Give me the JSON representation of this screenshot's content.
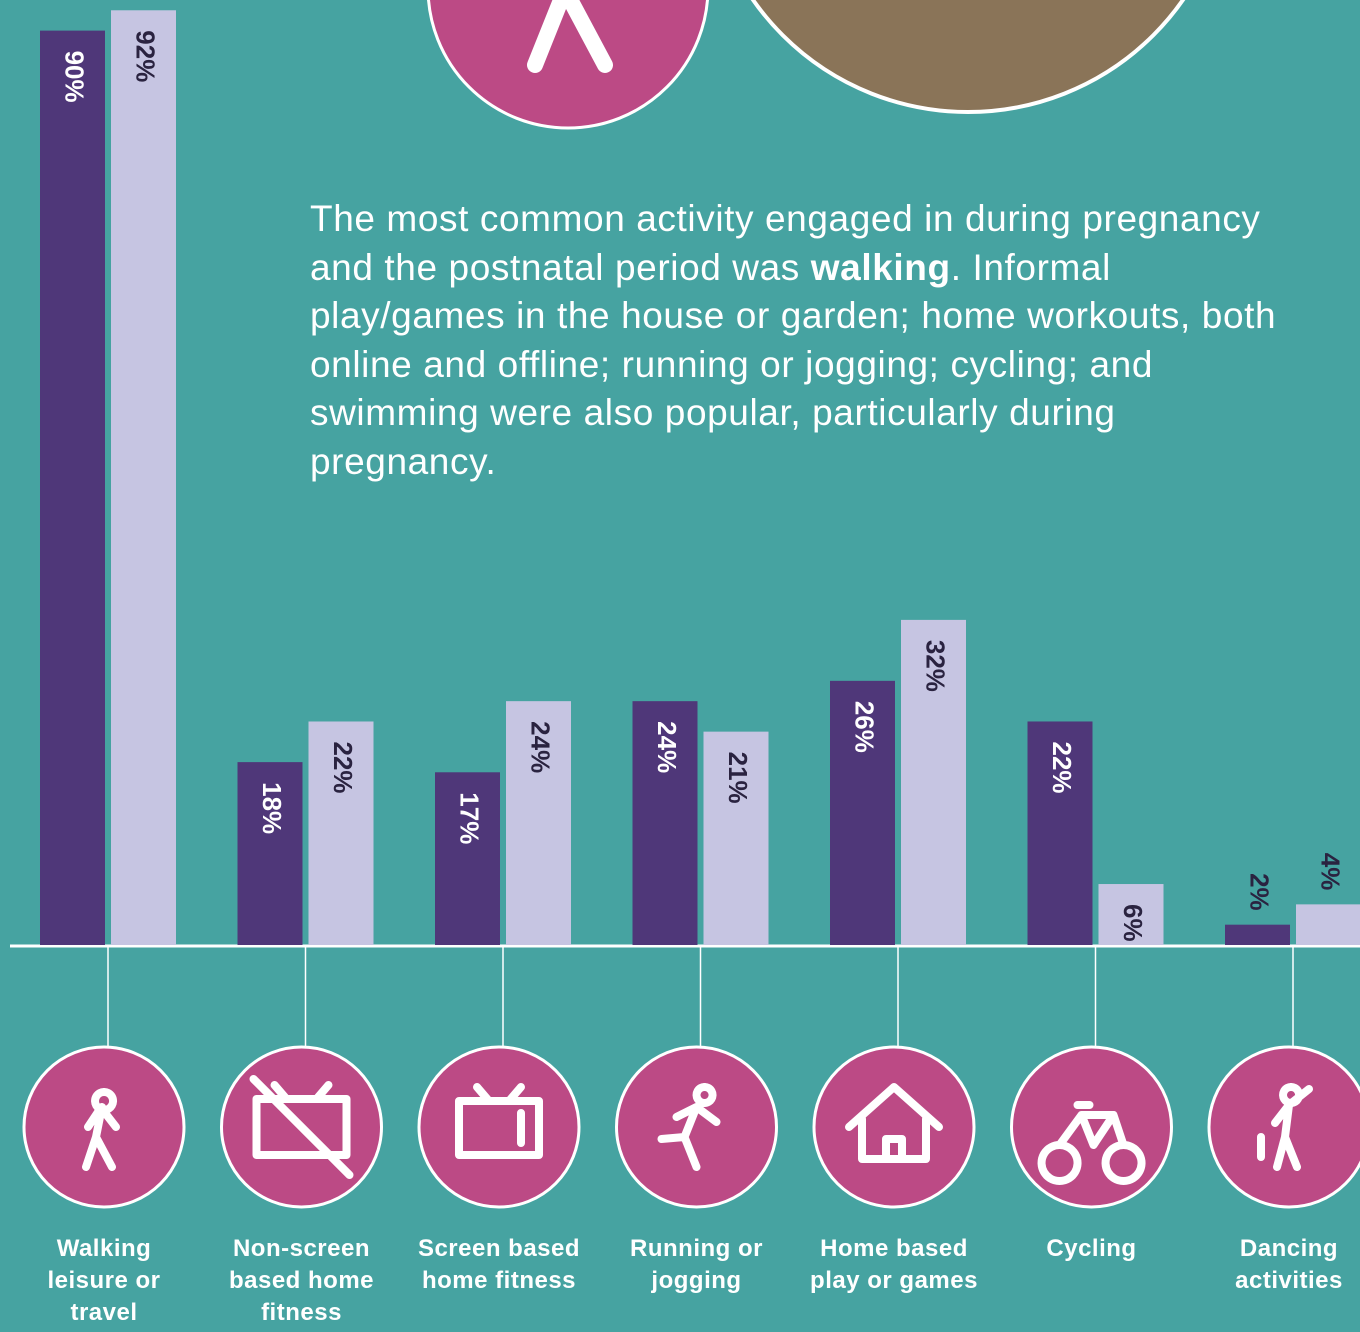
{
  "paragraph": [
    "The most common activity engaged in during pregnancy and the postnatal period was ",
    "walking",
    ". Informal play/games in the house or garden; home workouts, both online and offline; running or jogging; cycling; and swimming were also popular, particularly during pregnancy."
  ],
  "chart_data": {
    "type": "bar",
    "categories": [
      "Walking leisure or travel",
      "Non-screen based home fitness",
      "Screen based home fitness",
      "Running or jogging",
      "Home based play or games",
      "Cycling",
      "Dancing activities"
    ],
    "series": [
      {
        "color": "#4f3779",
        "values": [
          90,
          18,
          17,
          24,
          26,
          22,
          2
        ],
        "value_labels": [
          "90%",
          "18%",
          "17%",
          "24%",
          "26%",
          "22%",
          "2%"
        ]
      },
      {
        "color": "#c6c5e2",
        "values": [
          92,
          22,
          24,
          21,
          32,
          6,
          4
        ],
        "value_labels": [
          "92%",
          "22%",
          "24%",
          "21%",
          "32%",
          "6%",
          "4%"
        ]
      }
    ]
  }
}
